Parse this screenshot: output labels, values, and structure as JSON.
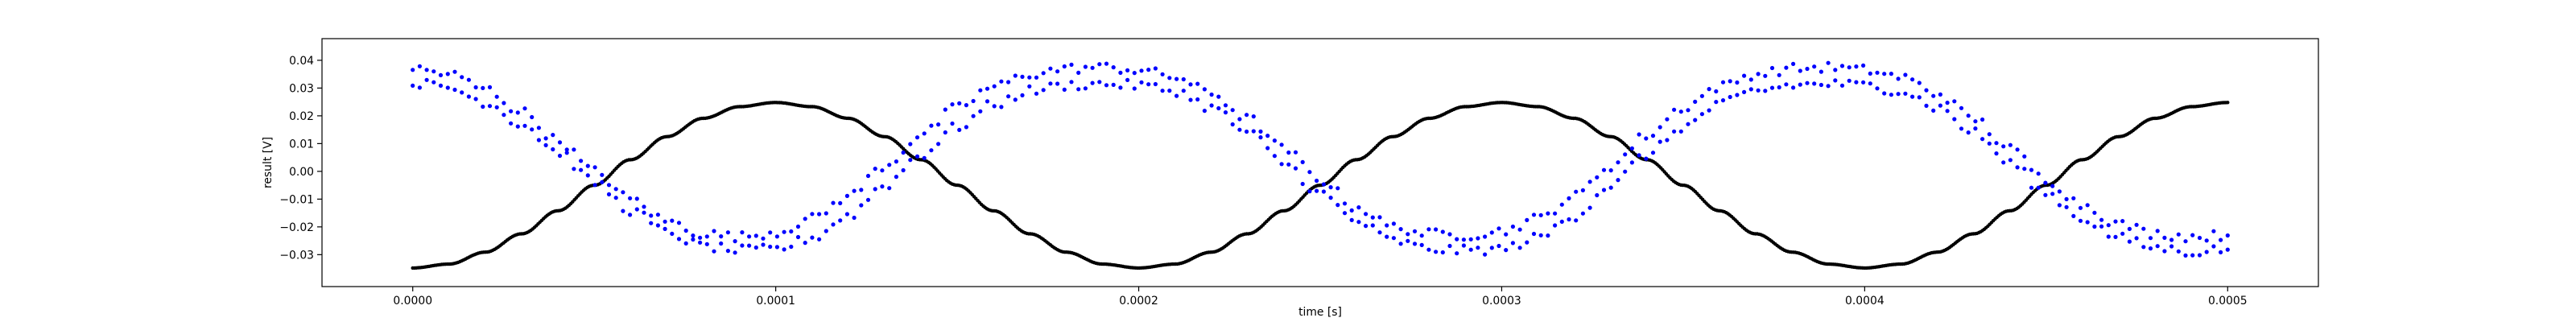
{
  "chart_data": {
    "type": "scatter",
    "title": "",
    "xlabel": "time [s]",
    "ylabel": "result [V]",
    "xlim": [
      -2.5e-05,
      0.000525
    ],
    "ylim": [
      -0.0415,
      0.0478
    ],
    "xticks": [
      0.0,
      0.0001,
      0.0002,
      0.0003,
      0.0004,
      0.0005
    ],
    "xtick_labels": [
      "0.0000",
      "0.0001",
      "0.0002",
      "0.0003",
      "0.0004",
      "0.0005"
    ],
    "yticks": [
      -0.03,
      -0.02,
      -0.01,
      0.0,
      0.01,
      0.02,
      0.03,
      0.04
    ],
    "ytick_labels": [
      "−0.03",
      "−0.02",
      "−0.01",
      "0.00",
      "0.01",
      "0.02",
      "0.03",
      "0.04"
    ],
    "grid": false,
    "legend": null,
    "series": [
      {
        "color": "#000000",
        "marker": "point",
        "description_shape": "cosine, amplitude 0.0298, offset -0.0050, period 0.0002 s, starts at minimum",
        "x": [
          0.0,
          1e-05,
          2e-05,
          3e-05,
          4e-05,
          5e-05,
          6e-05,
          7e-05,
          8e-05,
          9e-05,
          0.0001,
          0.00011,
          0.00012,
          0.00013,
          0.00014,
          0.00015,
          0.00016,
          0.00017,
          0.00018,
          0.00019,
          0.0002,
          0.00021,
          0.00022,
          0.00023,
          0.00024,
          0.00025,
          0.00026,
          0.00027,
          0.00028,
          0.00029,
          0.0003,
          0.00031,
          0.00032,
          0.00033,
          0.00034,
          0.00035,
          0.00036,
          0.00037,
          0.00038,
          0.00039,
          0.0004,
          0.00041,
          0.00042,
          0.00043,
          0.00044,
          0.00045,
          0.00046,
          0.00047,
          0.00048,
          0.00049,
          0.0005
        ],
        "y": [
          -0.0348,
          -0.0334,
          -0.0291,
          -0.0225,
          -0.0142,
          -0.005,
          0.0042,
          0.0125,
          0.0191,
          0.0233,
          0.0248,
          0.0233,
          0.0191,
          0.0125,
          0.0042,
          -0.005,
          -0.0142,
          -0.0225,
          -0.0291,
          -0.0334,
          -0.0348,
          -0.0334,
          -0.0291,
          -0.0225,
          -0.0142,
          -0.005,
          0.0042,
          0.0125,
          0.0191,
          0.0233,
          0.0248,
          0.0233,
          0.0191,
          0.0125,
          0.0042,
          -0.005,
          -0.0142,
          -0.0225,
          -0.0291,
          -0.0334,
          -0.0348,
          -0.0334,
          -0.0291,
          -0.0225,
          -0.0142,
          -0.005,
          0.0042,
          0.0125,
          0.0191,
          0.0233,
          0.0248
        ]
      },
      {
        "color": "#0000ff",
        "marker": "point",
        "description_shape": "noisy cosine, upper band",
        "x": [
          0.0,
          1e-05,
          2e-05,
          3e-05,
          4e-05,
          5e-05,
          6e-05,
          7e-05,
          8e-05,
          9e-05,
          0.0001,
          0.00011,
          0.00012,
          0.00013,
          0.00014,
          0.00015,
          0.00016,
          0.00017,
          0.00018,
          0.00019,
          0.0002,
          0.00021,
          0.00022,
          0.00023,
          0.00024,
          0.00025,
          0.00026,
          0.00027,
          0.00028,
          0.00029,
          0.0003,
          0.00031,
          0.00032,
          0.00033,
          0.00034,
          0.00035,
          0.00036,
          0.00037,
          0.00038,
          0.00039,
          0.0004,
          0.00041,
          0.00042,
          0.00043,
          0.00044,
          0.00045,
          0.00046,
          0.00047,
          0.00048,
          0.00049,
          0.0005
        ],
        "y": [
          0.037,
          0.035,
          0.0296,
          0.0214,
          0.0111,
          0.0,
          -0.01,
          -0.018,
          -0.0225,
          -0.0235,
          -0.022,
          -0.017,
          -0.009,
          0.002,
          0.013,
          0.023,
          0.0305,
          0.035,
          0.037,
          0.0375,
          0.0365,
          0.034,
          0.028,
          0.019,
          0.008,
          -0.003,
          -0.013,
          -0.02,
          -0.0225,
          -0.023,
          -0.0215,
          -0.017,
          -0.009,
          0.002,
          0.013,
          0.023,
          0.0305,
          0.035,
          0.037,
          0.0375,
          0.0365,
          0.034,
          0.028,
          0.019,
          0.008,
          -0.003,
          -0.012,
          -0.019,
          -0.0225,
          -0.0235,
          -0.023
        ]
      },
      {
        "color": "#0000ff",
        "marker": "point",
        "description_shape": "noisy cosine, lower band",
        "x": [
          0.0,
          1e-05,
          2e-05,
          3e-05,
          4e-05,
          5e-05,
          6e-05,
          7e-05,
          8e-05,
          9e-05,
          0.0001,
          0.00011,
          0.00012,
          0.00013,
          0.00014,
          0.00015,
          0.00016,
          0.00017,
          0.00018,
          0.00019,
          0.0002,
          0.00021,
          0.00022,
          0.00023,
          0.00024,
          0.00025,
          0.00026,
          0.00027,
          0.00028,
          0.00029,
          0.0003,
          0.00031,
          0.00032,
          0.00033,
          0.00034,
          0.00035,
          0.00036,
          0.00037,
          0.00038,
          0.00039,
          0.0004,
          0.00041,
          0.00042,
          0.00043,
          0.00044,
          0.00045,
          0.00046,
          0.00047,
          0.00048,
          0.00049,
          0.0005
        ],
        "y": [
          0.032,
          0.03,
          0.025,
          0.017,
          0.007,
          -0.004,
          -0.014,
          -0.022,
          -0.027,
          -0.0285,
          -0.028,
          -0.024,
          -0.016,
          -0.005,
          0.006,
          0.016,
          0.024,
          0.029,
          0.031,
          0.0315,
          0.031,
          0.029,
          0.023,
          0.014,
          0.003,
          -0.008,
          -0.018,
          -0.025,
          -0.028,
          -0.0285,
          -0.028,
          -0.024,
          -0.016,
          -0.005,
          0.006,
          0.016,
          0.024,
          0.029,
          0.031,
          0.0315,
          0.031,
          0.029,
          0.023,
          0.014,
          0.003,
          -0.008,
          -0.017,
          -0.024,
          -0.0275,
          -0.029,
          -0.028
        ]
      }
    ]
  }
}
